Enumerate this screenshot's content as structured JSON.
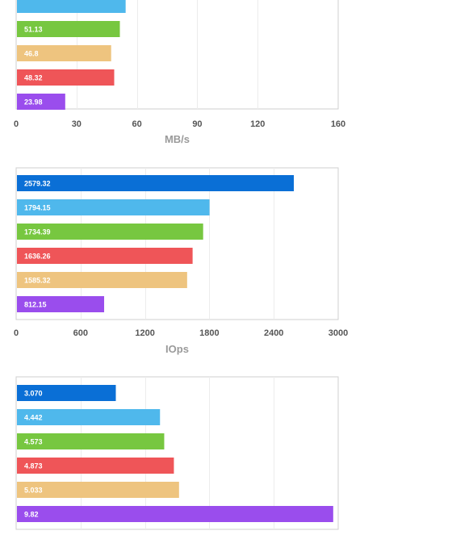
{
  "colors": {
    "blue": "#0a6fd6",
    "sky": "#4fb8ec",
    "green": "#77c740",
    "red": "#ef5558",
    "tan": "#eec47f",
    "purple": "#9a4ded"
  },
  "chart_data": [
    {
      "type": "bar",
      "orientation": "horizontal",
      "xlabel": "MB/s",
      "xlim": [
        0,
        160
      ],
      "ticks": [
        "0",
        "30",
        "60",
        "90",
        "120",
        "160"
      ],
      "tick_values": [
        0,
        30,
        60,
        90,
        120,
        160
      ],
      "grid": true,
      "bars": [
        {
          "label": "",
          "value": 54,
          "color": "sky"
        },
        {
          "label": "51.13",
          "value": 51.13,
          "color": "green"
        },
        {
          "label": "46.8",
          "value": 46.8,
          "color": "tan"
        },
        {
          "label": "48.32",
          "value": 48.32,
          "color": "red"
        },
        {
          "label": "23.98",
          "value": 23.98,
          "color": "purple"
        }
      ]
    },
    {
      "type": "bar",
      "orientation": "horizontal",
      "xlabel": "IOps",
      "xlim": [
        0,
        3000
      ],
      "ticks": [
        "0",
        "600",
        "1200",
        "1800",
        "2400",
        "3000"
      ],
      "tick_values": [
        0,
        600,
        1200,
        1800,
        2400,
        3000
      ],
      "grid": true,
      "bars": [
        {
          "label": "2579.32",
          "value": 2579.32,
          "color": "blue"
        },
        {
          "label": "1794.15",
          "value": 1794.15,
          "color": "sky"
        },
        {
          "label": "1734.39",
          "value": 1734.39,
          "color": "green"
        },
        {
          "label": "1636.26",
          "value": 1636.26,
          "color": "red"
        },
        {
          "label": "1585.32",
          "value": 1585.32,
          "color": "tan"
        },
        {
          "label": "812.15",
          "value": 812.15,
          "color": "purple"
        }
      ]
    },
    {
      "type": "bar",
      "orientation": "horizontal",
      "xlabel": "",
      "xlim": [
        0,
        10
      ],
      "ticks": [],
      "tick_values": [
        0,
        2,
        4,
        6,
        8,
        10
      ],
      "grid": true,
      "bars": [
        {
          "label": "3.070",
          "value": 3.07,
          "color": "blue"
        },
        {
          "label": "4.442",
          "value": 4.442,
          "color": "sky"
        },
        {
          "label": "4.573",
          "value": 4.573,
          "color": "green"
        },
        {
          "label": "4.873",
          "value": 4.873,
          "color": "red"
        },
        {
          "label": "5.033",
          "value": 5.033,
          "color": "tan"
        },
        {
          "label": "9.82",
          "value": 9.82,
          "color": "purple"
        }
      ]
    }
  ]
}
